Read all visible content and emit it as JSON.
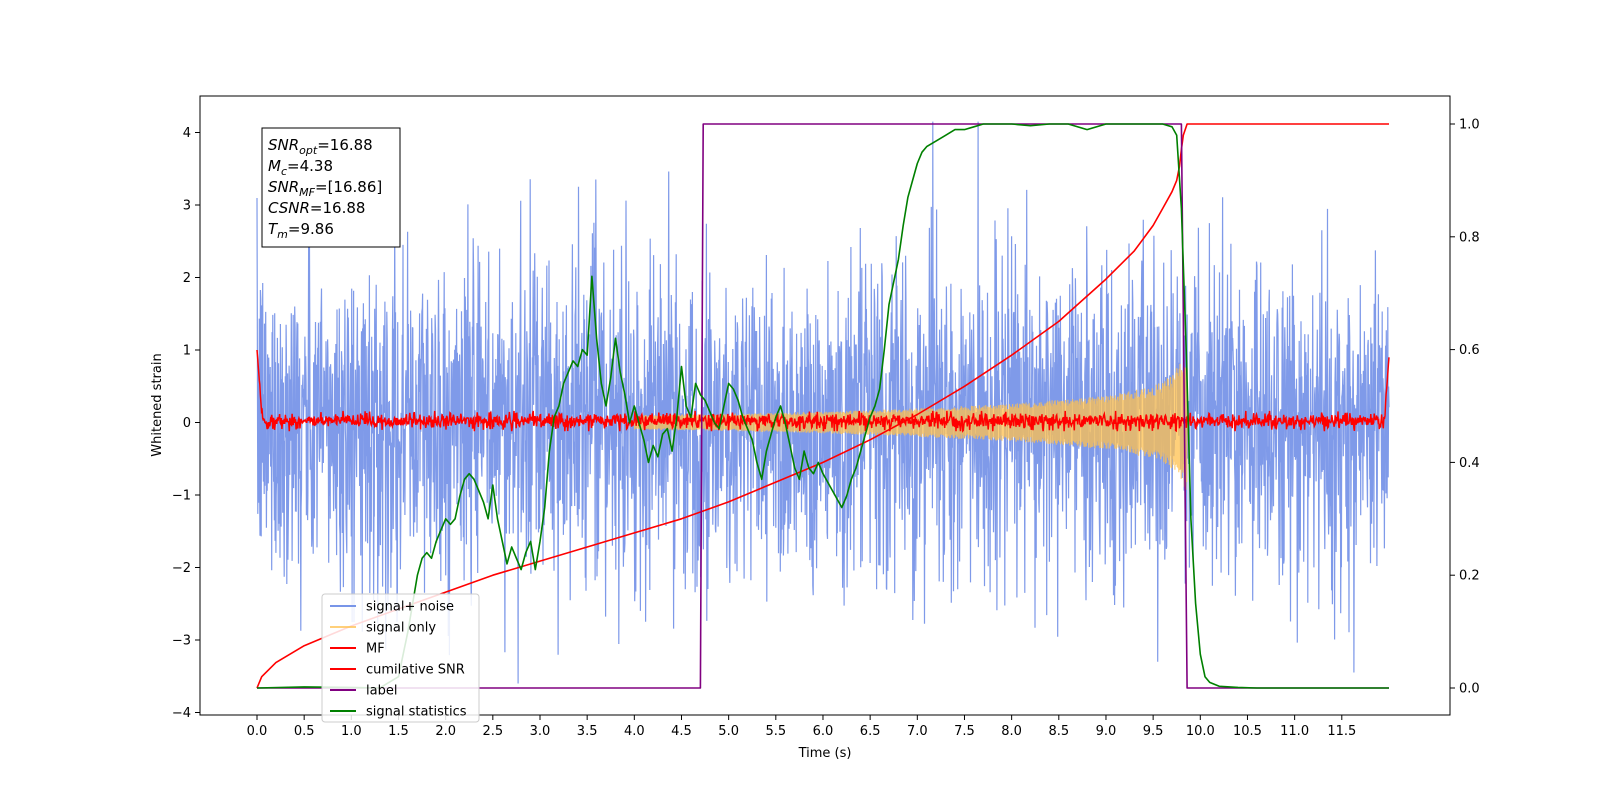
{
  "chart_data": {
    "type": "line",
    "xlabel": "Time (s)",
    "ylabel": "Whitened strain",
    "xlim": [
      -0.6,
      12.6
    ],
    "ylim": [
      -4.0,
      4.5
    ],
    "y2lim": [
      -0.05,
      1.05
    ],
    "x_ticks": [
      "0.0",
      "0.5",
      "1.0",
      "1.5",
      "2.0",
      "2.5",
      "3.0",
      "3.5",
      "4.0",
      "4.5",
      "5.0",
      "5.5",
      "6.0",
      "6.5",
      "7.0",
      "7.5",
      "8.0",
      "8.5",
      "9.0",
      "9.5",
      "10.0",
      "10.5",
      "11.0",
      "11.5"
    ],
    "y_ticks": [
      "4",
      "3",
      "2",
      "1",
      "0",
      "−1",
      "−2",
      "−3",
      "−4"
    ],
    "y2_ticks": [
      "1.0",
      "0.8",
      "0.6",
      "0.4",
      "0.2",
      "0.0"
    ],
    "grid": false,
    "legend_position": "lower-left",
    "annotation": {
      "lines": [
        {
          "name": "SNR",
          "sub": "opt",
          "value": "=16.88"
        },
        {
          "name": "M",
          "sub": "c",
          "value": "=4.38"
        },
        {
          "name": "SNR",
          "sub": "MF",
          "value": "=[16.86]"
        },
        {
          "name": "CSNR",
          "sub": "",
          "value": "=16.88"
        },
        {
          "name": "T",
          "sub": "m",
          "value": "=9.86"
        }
      ]
    },
    "series": [
      {
        "name": "signal+ noise",
        "axis": "left",
        "color": "#7895e8",
        "kind": "noise band",
        "t_range": [
          0.0,
          12.0
        ],
        "typical_range": [
          -1.8,
          1.8
        ],
        "extremes": [
          -3.6,
          4.15
        ]
      },
      {
        "name": "signal only",
        "axis": "left",
        "color": "#ffc04d",
        "kind": "chirp envelope",
        "t_range": [
          4.0,
          9.86
        ],
        "envelope": [
          [
            4.0,
            0.1
          ],
          [
            5.0,
            0.12
          ],
          [
            6.0,
            0.15
          ],
          [
            7.0,
            0.2
          ],
          [
            8.0,
            0.26
          ],
          [
            9.0,
            0.37
          ],
          [
            9.5,
            0.5
          ],
          [
            9.7,
            0.65
          ],
          [
            9.8,
            0.85
          ],
          [
            9.86,
            0.95
          ]
        ]
      },
      {
        "name": "MF",
        "axis": "left",
        "color": "#ff0000",
        "kind": "noise trace",
        "t_range": [
          0.0,
          12.0
        ],
        "typical_range": [
          -0.08,
          0.12
        ],
        "edges": [
          [
            0.0,
            1.0
          ],
          [
            12.0,
            0.9
          ]
        ]
      },
      {
        "name": "cumilative SNR",
        "axis": "right",
        "color": "#ff0000",
        "x": [
          0.0,
          0.05,
          0.2,
          0.5,
          1.0,
          1.5,
          2.0,
          2.5,
          3.0,
          3.5,
          4.0,
          4.5,
          5.0,
          5.5,
          6.0,
          6.5,
          7.0,
          7.5,
          8.0,
          8.5,
          9.0,
          9.3,
          9.5,
          9.6,
          9.7,
          9.75,
          9.78,
          9.8,
          9.82,
          9.86,
          12.0
        ],
        "y": [
          0.0,
          0.02,
          0.045,
          0.075,
          0.11,
          0.14,
          0.17,
          0.2,
          0.225,
          0.25,
          0.275,
          0.3,
          0.33,
          0.365,
          0.4,
          0.44,
          0.485,
          0.535,
          0.59,
          0.65,
          0.725,
          0.775,
          0.82,
          0.85,
          0.88,
          0.9,
          0.925,
          0.955,
          0.98,
          1.0,
          1.0
        ]
      },
      {
        "name": "label",
        "axis": "right",
        "color": "#800080",
        "x": [
          0.0,
          4.7,
          4.73,
          9.8,
          9.86,
          12.0
        ],
        "y": [
          0.0,
          0.0,
          1.0,
          1.0,
          0.0,
          0.0
        ]
      },
      {
        "name": "signal statistics",
        "axis": "right",
        "color": "#008000",
        "x": [
          0.0,
          0.5,
          1.0,
          1.3,
          1.5,
          1.6,
          1.7,
          1.75,
          1.8,
          1.85,
          1.9,
          1.95,
          2.0,
          2.05,
          2.1,
          2.15,
          2.2,
          2.25,
          2.3,
          2.35,
          2.4,
          2.45,
          2.5,
          2.55,
          2.6,
          2.65,
          2.7,
          2.75,
          2.8,
          2.85,
          2.9,
          2.95,
          3.0,
          3.05,
          3.1,
          3.15,
          3.2,
          3.25,
          3.3,
          3.35,
          3.4,
          3.45,
          3.5,
          3.55,
          3.6,
          3.65,
          3.7,
          3.75,
          3.8,
          3.85,
          3.9,
          3.95,
          4.0,
          4.05,
          4.1,
          4.15,
          4.2,
          4.25,
          4.3,
          4.35,
          4.4,
          4.45,
          4.5,
          4.55,
          4.6,
          4.65,
          4.7,
          4.75,
          4.8,
          4.85,
          4.9,
          4.95,
          5.0,
          5.05,
          5.1,
          5.15,
          5.2,
          5.25,
          5.3,
          5.35,
          5.4,
          5.45,
          5.5,
          5.55,
          5.6,
          5.65,
          5.7,
          5.75,
          5.8,
          5.85,
          5.9,
          5.95,
          6.0,
          6.1,
          6.2,
          6.25,
          6.3,
          6.35,
          6.4,
          6.45,
          6.5,
          6.55,
          6.6,
          6.65,
          6.7,
          6.75,
          6.8,
          6.85,
          6.9,
          6.95,
          7.0,
          7.05,
          7.1,
          7.2,
          7.3,
          7.4,
          7.5,
          7.6,
          7.7,
          7.8,
          8.0,
          8.2,
          8.4,
          8.6,
          8.8,
          9.0,
          9.2,
          9.4,
          9.6,
          9.7,
          9.75,
          9.8,
          9.85,
          9.9,
          9.95,
          10.0,
          10.05,
          10.1,
          10.2,
          10.4,
          10.6,
          11.0,
          11.5,
          12.0
        ],
        "y": [
          0.0,
          0.002,
          0.001,
          0.0,
          0.02,
          0.1,
          0.2,
          0.23,
          0.24,
          0.23,
          0.26,
          0.28,
          0.3,
          0.29,
          0.3,
          0.34,
          0.37,
          0.38,
          0.37,
          0.35,
          0.33,
          0.3,
          0.36,
          0.3,
          0.26,
          0.22,
          0.25,
          0.23,
          0.21,
          0.24,
          0.26,
          0.21,
          0.26,
          0.32,
          0.42,
          0.48,
          0.5,
          0.54,
          0.56,
          0.58,
          0.57,
          0.6,
          0.59,
          0.73,
          0.62,
          0.54,
          0.5,
          0.55,
          0.62,
          0.56,
          0.52,
          0.47,
          0.5,
          0.47,
          0.44,
          0.4,
          0.43,
          0.41,
          0.45,
          0.46,
          0.42,
          0.48,
          0.57,
          0.5,
          0.48,
          0.54,
          0.52,
          0.51,
          0.49,
          0.47,
          0.46,
          0.5,
          0.54,
          0.53,
          0.51,
          0.48,
          0.46,
          0.44,
          0.4,
          0.37,
          0.42,
          0.45,
          0.48,
          0.5,
          0.47,
          0.43,
          0.39,
          0.37,
          0.42,
          0.39,
          0.38,
          0.4,
          0.38,
          0.35,
          0.32,
          0.34,
          0.37,
          0.39,
          0.42,
          0.45,
          0.48,
          0.5,
          0.53,
          0.6,
          0.68,
          0.72,
          0.76,
          0.82,
          0.87,
          0.9,
          0.93,
          0.95,
          0.96,
          0.97,
          0.98,
          0.99,
          0.99,
          0.995,
          1.0,
          1.0,
          1.0,
          0.997,
          1.0,
          1.0,
          0.99,
          1.0,
          1.0,
          1.0,
          1.0,
          0.995,
          0.98,
          0.85,
          0.6,
          0.3,
          0.15,
          0.06,
          0.02,
          0.01,
          0.003,
          0.001,
          0.0,
          0.0,
          0.0,
          0.0
        ]
      }
    ]
  }
}
